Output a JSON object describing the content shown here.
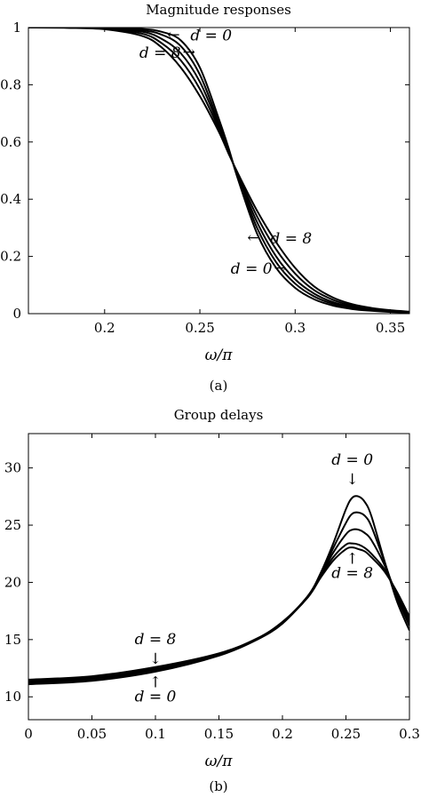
{
  "chart_data": [
    {
      "type": "line",
      "title": "Magnitude responses",
      "xlabel": "ω/π",
      "caption": "(a)",
      "xlim": [
        0.16,
        0.36
      ],
      "ylim": [
        0,
        1
      ],
      "x_ticks": [
        "0.2",
        "0.25",
        "0.3",
        "0.35"
      ],
      "y_ticks": [
        "0",
        "0.2",
        "0.4",
        "0.6",
        "0.8",
        "1"
      ],
      "grid": false,
      "series": [
        {
          "x": [
            0.16,
            0.18,
            0.2,
            0.22,
            0.23,
            0.24,
            0.25,
            0.26,
            0.265,
            0.27,
            0.28,
            0.29,
            0.3,
            0.31,
            0.32,
            0.33,
            0.34,
            0.35,
            0.36
          ],
          "y": [
            1.0,
            1.0,
            1.0,
            0.995,
            0.985,
            0.955,
            0.86,
            0.68,
            0.58,
            0.47,
            0.28,
            0.16,
            0.09,
            0.05,
            0.028,
            0.016,
            0.01,
            0.006,
            0.004
          ]
        },
        {
          "x": [
            0.16,
            0.18,
            0.2,
            0.22,
            0.23,
            0.24,
            0.25,
            0.26,
            0.265,
            0.27,
            0.28,
            0.29,
            0.3,
            0.31,
            0.32,
            0.33,
            0.34,
            0.35,
            0.36
          ],
          "y": [
            1.0,
            1.0,
            0.999,
            0.99,
            0.975,
            0.935,
            0.835,
            0.665,
            0.575,
            0.475,
            0.3,
            0.18,
            0.105,
            0.06,
            0.034,
            0.02,
            0.012,
            0.007,
            0.005
          ]
        },
        {
          "x": [
            0.16,
            0.18,
            0.2,
            0.22,
            0.23,
            0.24,
            0.25,
            0.26,
            0.265,
            0.27,
            0.28,
            0.29,
            0.3,
            0.31,
            0.32,
            0.33,
            0.34,
            0.35,
            0.36
          ],
          "y": [
            1.0,
            1.0,
            0.998,
            0.985,
            0.96,
            0.91,
            0.81,
            0.655,
            0.57,
            0.48,
            0.32,
            0.2,
            0.12,
            0.07,
            0.04,
            0.024,
            0.014,
            0.008,
            0.005
          ]
        },
        {
          "x": [
            0.16,
            0.18,
            0.2,
            0.22,
            0.23,
            0.24,
            0.25,
            0.26,
            0.265,
            0.27,
            0.28,
            0.29,
            0.3,
            0.31,
            0.32,
            0.33,
            0.34,
            0.35,
            0.36
          ],
          "y": [
            1.0,
            1.0,
            0.996,
            0.978,
            0.945,
            0.885,
            0.785,
            0.645,
            0.565,
            0.485,
            0.34,
            0.225,
            0.14,
            0.082,
            0.048,
            0.028,
            0.017,
            0.01,
            0.006
          ]
        },
        {
          "x": [
            0.16,
            0.18,
            0.2,
            0.22,
            0.23,
            0.24,
            0.25,
            0.26,
            0.265,
            0.27,
            0.28,
            0.29,
            0.3,
            0.31,
            0.32,
            0.33,
            0.34,
            0.35,
            0.36
          ],
          "y": [
            1.0,
            0.999,
            0.994,
            0.97,
            0.93,
            0.86,
            0.76,
            0.635,
            0.56,
            0.49,
            0.36,
            0.25,
            0.16,
            0.095,
            0.056,
            0.033,
            0.02,
            0.012,
            0.007
          ]
        }
      ],
      "annotations": [
        {
          "text": "d = 0",
          "x": 0.245,
          "y": 0.955,
          "arrow": "left"
        },
        {
          "text": "d = 8",
          "x": 0.24,
          "y": 0.895,
          "arrow": "right"
        },
        {
          "text": "d = 8",
          "x": 0.287,
          "y": 0.245,
          "arrow": "left"
        },
        {
          "text": "d = 0",
          "x": 0.288,
          "y": 0.14,
          "arrow": "right"
        }
      ]
    },
    {
      "type": "line",
      "title": "Group delays",
      "xlabel": "ω/π",
      "caption": "(b)",
      "xlim": [
        0,
        0.3
      ],
      "ylim": [
        8,
        33
      ],
      "x_ticks": [
        "0",
        "0.05",
        "0.1",
        "0.15",
        "0.2",
        "0.25",
        "0.3"
      ],
      "y_ticks": [
        "10",
        "15",
        "20",
        "25",
        "30"
      ],
      "grid": false,
      "series": [
        {
          "x": [
            0,
            0.05,
            0.1,
            0.15,
            0.18,
            0.2,
            0.22,
            0.23,
            0.24,
            0.25,
            0.255,
            0.26,
            0.265,
            0.27,
            0.28,
            0.29,
            0.3
          ],
          "y": [
            11.1,
            11.4,
            12.2,
            13.6,
            15.0,
            16.4,
            18.8,
            20.8,
            23.4,
            26.4,
            27.4,
            27.5,
            27.0,
            25.8,
            22.0,
            18.4,
            15.8
          ]
        },
        {
          "x": [
            0,
            0.05,
            0.1,
            0.15,
            0.18,
            0.2,
            0.22,
            0.23,
            0.24,
            0.25,
            0.255,
            0.26,
            0.265,
            0.27,
            0.28,
            0.29,
            0.3
          ],
          "y": [
            11.2,
            11.5,
            12.3,
            13.65,
            15.0,
            16.45,
            18.8,
            20.7,
            23.0,
            25.2,
            26.0,
            26.1,
            25.8,
            24.9,
            21.9,
            18.7,
            16.2
          ]
        },
        {
          "x": [
            0,
            0.05,
            0.1,
            0.15,
            0.18,
            0.2,
            0.22,
            0.23,
            0.24,
            0.25,
            0.255,
            0.26,
            0.265,
            0.27,
            0.28,
            0.29,
            0.3
          ],
          "y": [
            11.3,
            11.6,
            12.4,
            13.7,
            15.05,
            16.5,
            18.8,
            20.6,
            22.6,
            24.2,
            24.6,
            24.6,
            24.3,
            23.7,
            21.6,
            18.9,
            16.5
          ]
        },
        {
          "x": [
            0,
            0.05,
            0.1,
            0.15,
            0.18,
            0.2,
            0.22,
            0.23,
            0.24,
            0.25,
            0.255,
            0.26,
            0.265,
            0.27,
            0.28,
            0.29,
            0.3
          ],
          "y": [
            11.4,
            11.7,
            12.5,
            13.75,
            15.05,
            16.5,
            18.7,
            20.5,
            22.2,
            23.3,
            23.4,
            23.3,
            23.0,
            22.5,
            21.2,
            19.1,
            16.8
          ]
        },
        {
          "x": [
            0,
            0.05,
            0.1,
            0.15,
            0.18,
            0.2,
            0.22,
            0.23,
            0.24,
            0.25,
            0.255,
            0.26,
            0.265,
            0.27,
            0.28,
            0.29,
            0.3
          ],
          "y": [
            11.5,
            11.8,
            12.6,
            13.8,
            15.1,
            16.55,
            18.7,
            20.4,
            21.9,
            22.9,
            23.05,
            22.9,
            22.7,
            22.2,
            21.0,
            19.2,
            17.0
          ]
        }
      ],
      "annotations": [
        {
          "text": "d = 8",
          "x": 0.1,
          "y": 14.6,
          "arrow": "down"
        },
        {
          "text": "d = 0",
          "x": 0.1,
          "y": 9.6,
          "arrow": "up"
        },
        {
          "text": "d = 0",
          "x": 0.255,
          "y": 30.3,
          "arrow": "down"
        },
        {
          "text": "d = 8",
          "x": 0.255,
          "y": 20.4,
          "arrow": "up"
        }
      ]
    }
  ]
}
